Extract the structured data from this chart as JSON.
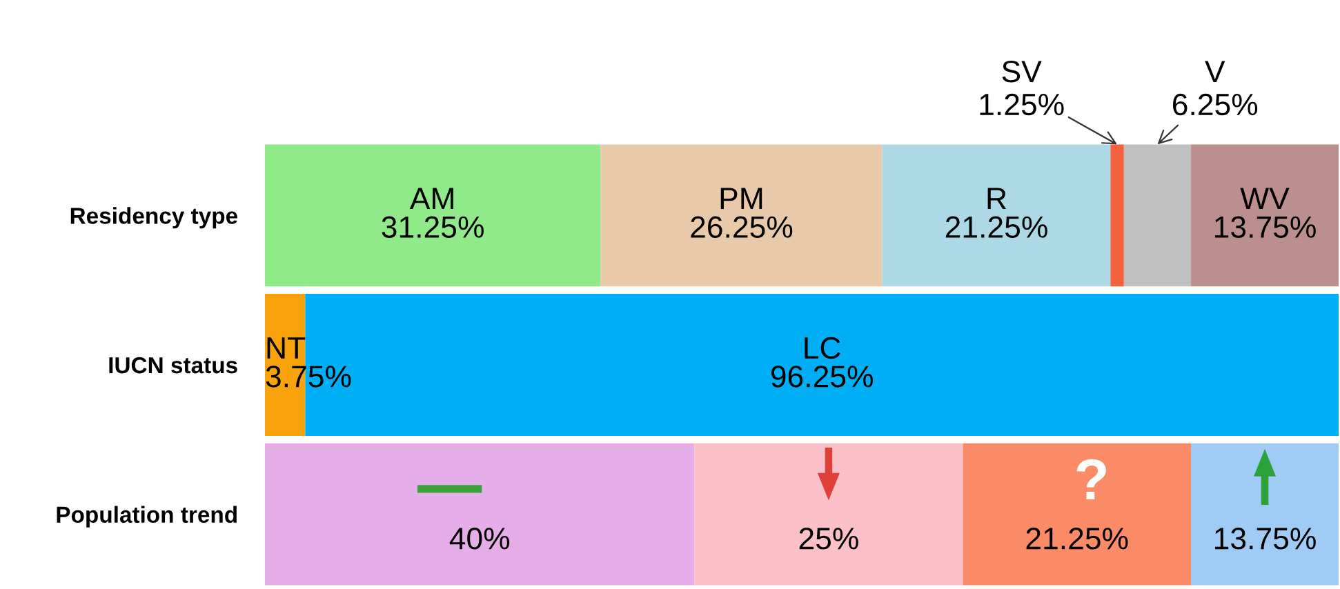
{
  "chart_data": {
    "type": "bar",
    "orientation": "horizontal",
    "stacked": true,
    "categories": [
      "Residency type",
      "IUCN status",
      "Population trend"
    ],
    "xlim": [
      0,
      100
    ],
    "tick_labels": "y",
    "grid": false,
    "legend": false,
    "series": [
      {
        "name": "AM",
        "color": "#90ea8a",
        "values": [
          31.25,
          null,
          null
        ],
        "value_labels": [
          "31.25%",
          null,
          null
        ]
      },
      {
        "name": "PM",
        "color": "#e8c9aa",
        "values": [
          26.25,
          null,
          null
        ],
        "value_labels": [
          "26.25%",
          null,
          null
        ]
      },
      {
        "name": "R",
        "color": "#add8e6",
        "values": [
          21.25,
          null,
          null
        ],
        "value_labels": [
          "21.25%",
          null,
          null
        ]
      },
      {
        "color": "#f4613f",
        "values": [
          1.25,
          null,
          null
        ]
      },
      {
        "color": "#c0c0c0",
        "values": [
          6.25,
          null,
          null
        ]
      },
      {
        "name": "WV",
        "color": "#bc8f8f",
        "values": [
          13.75,
          null,
          null
        ],
        "value_labels": [
          "13.75%",
          null,
          null
        ]
      },
      {
        "name": "NT",
        "color": "#f8a20c",
        "values": [
          null,
          3.75,
          null
        ],
        "value_labels": [
          null,
          "3.75%",
          null
        ]
      },
      {
        "name": "LC",
        "color": "#00aef5",
        "values": [
          null,
          96.25,
          null
        ],
        "value_labels": [
          null,
          "96.25%",
          null
        ]
      },
      {
        "color": "#e6aee8",
        "values": [
          null,
          null,
          40
        ],
        "value_labels": [
          null,
          null,
          "40%"
        ]
      },
      {
        "color": "#fcc0c8",
        "values": [
          null,
          null,
          25
        ],
        "value_labels": [
          null,
          null,
          "25%"
        ]
      },
      {
        "color": "#fc8c68",
        "values": [
          null,
          null,
          21.25
        ],
        "value_labels": [
          null,
          null,
          "21.25%"
        ]
      },
      {
        "color": "#9fcbf5",
        "values": [
          null,
          null,
          13.75
        ],
        "value_labels": [
          null,
          null,
          "13.75%"
        ]
      }
    ],
    "annotations": [
      "SV\n1.25%",
      "V\n6.25%",
      {
        "text": "?",
        "x": 77,
        "y": "Population trend"
      }
    ]
  }
}
